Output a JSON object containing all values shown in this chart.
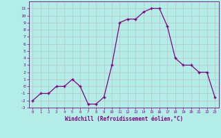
{
  "x": [
    0,
    1,
    2,
    3,
    4,
    5,
    6,
    7,
    8,
    9,
    10,
    11,
    12,
    13,
    14,
    15,
    16,
    17,
    18,
    19,
    20,
    21,
    22,
    23
  ],
  "y": [
    -2,
    -1,
    -1,
    0,
    0,
    1,
    0,
    -2.5,
    -2.5,
    -1.5,
    3,
    9,
    9.5,
    9.5,
    10.5,
    11,
    11,
    8.5,
    4,
    3,
    3,
    2,
    2,
    -1.5
  ],
  "line_color": "#800080",
  "marker_color": "#800080",
  "bg_color": "#b2ede8",
  "grid_color": "#aaaaaa",
  "xlabel": "Windchill (Refroidissement éolien,°C)",
  "xlabel_color": "#800080",
  "tick_color": "#800080",
  "ylim": [
    -3,
    12
  ],
  "xlim": [
    -0.5,
    23.5
  ],
  "yticks": [
    -3,
    -2,
    -1,
    0,
    1,
    2,
    3,
    4,
    5,
    6,
    7,
    8,
    9,
    10,
    11
  ],
  "xticks": [
    0,
    1,
    2,
    3,
    4,
    5,
    6,
    7,
    8,
    9,
    10,
    11,
    12,
    13,
    14,
    15,
    16,
    17,
    18,
    19,
    20,
    21,
    22,
    23
  ]
}
